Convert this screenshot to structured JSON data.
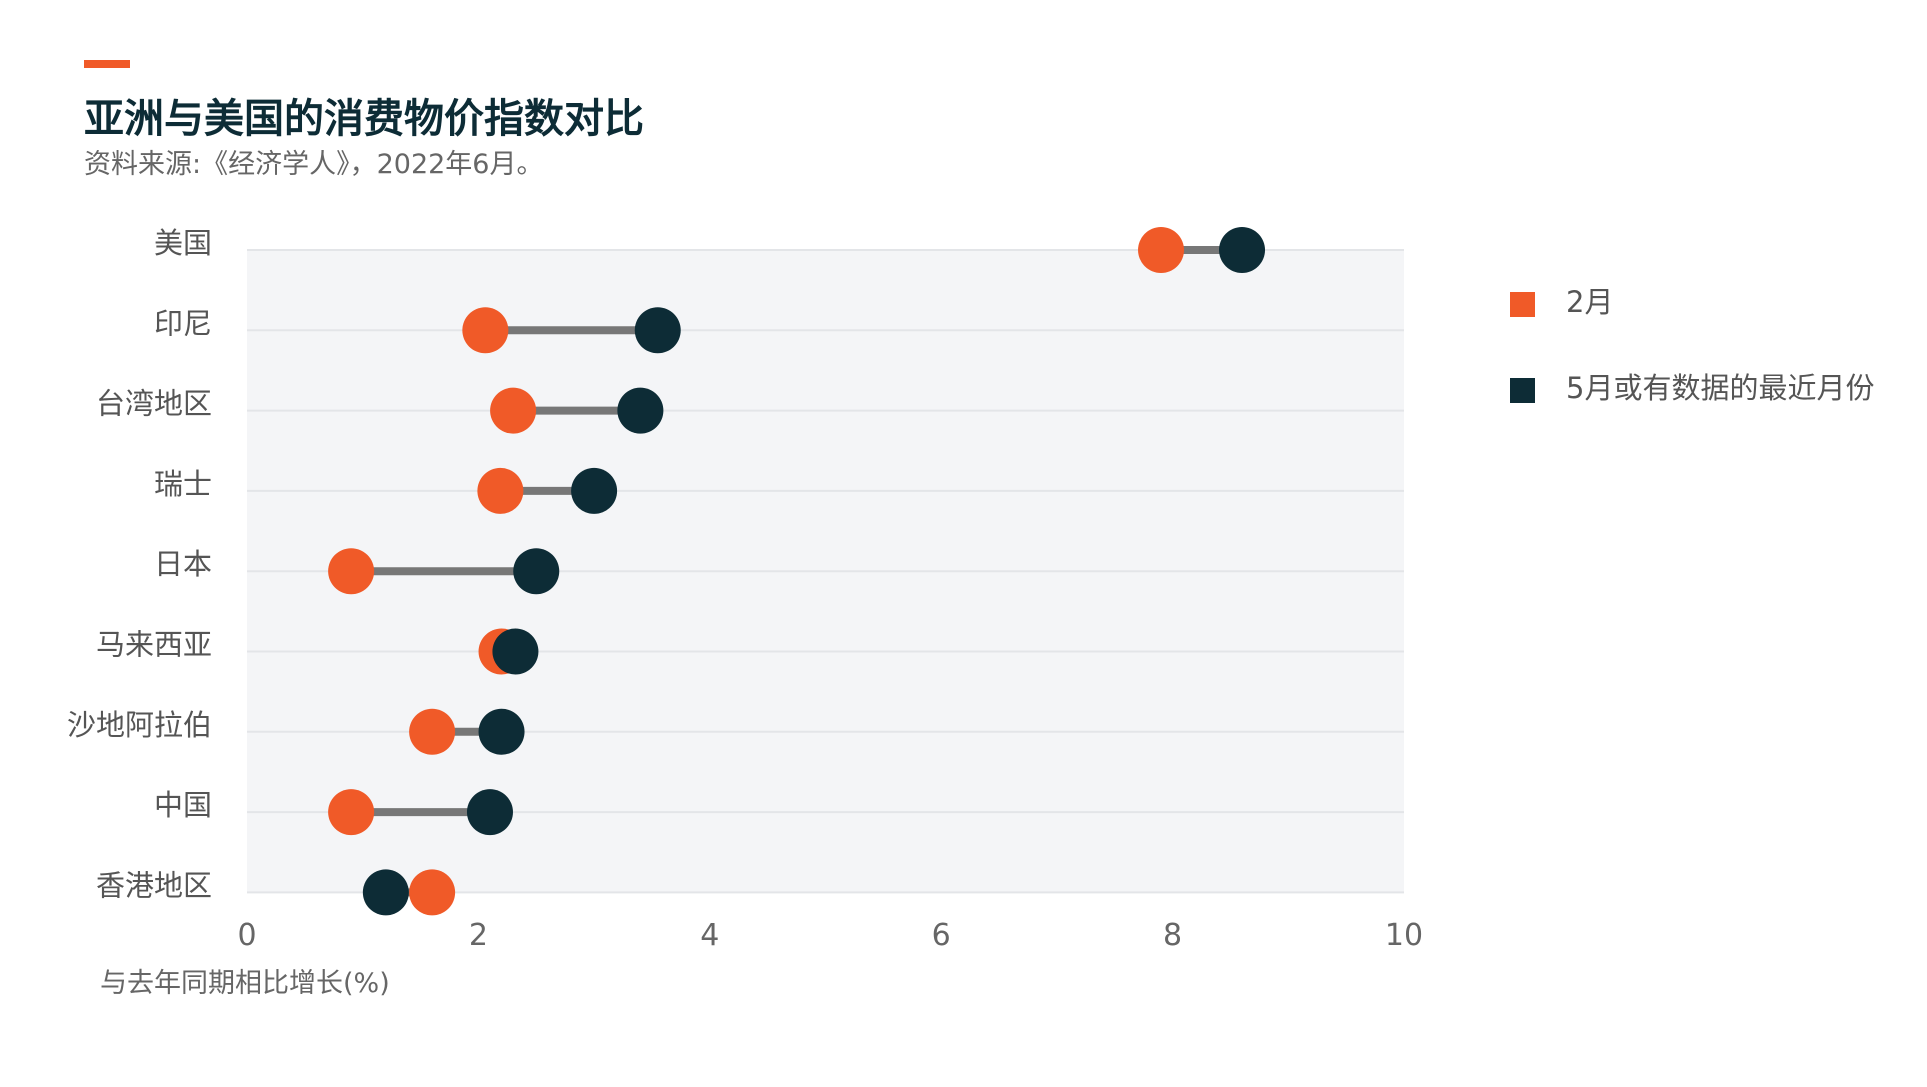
{
  "header": {
    "title": "亚洲与美国的消费物价指数对比",
    "subtitle": "资料来源:《经济学人》，2022年6月。"
  },
  "colors": {
    "feb": "#f05a28",
    "may": "#0d2c36",
    "connector": "#777777",
    "plot_bg": "#f4f5f7",
    "gridline": "#e3e5e8",
    "accent": "#f05a28"
  },
  "chart_data": {
    "type": "dumbbell",
    "categories": [
      "美国",
      "印尼",
      "台湾地区",
      "瑞士",
      "日本",
      "马来西亚",
      "沙地阿拉伯",
      "中国",
      "香港地区"
    ],
    "series": [
      {
        "name": "2月",
        "values": [
          7.9,
          2.06,
          2.3,
          2.19,
          0.9,
          2.2,
          1.6,
          0.9,
          1.6
        ]
      },
      {
        "name": "5月或有数据的最近月份",
        "values": [
          8.6,
          3.55,
          3.4,
          3.0,
          2.5,
          2.32,
          2.2,
          2.1,
          1.2
        ]
      }
    ],
    "xlabel": "与去年同期相比增长(%)",
    "xlim": [
      0,
      10
    ],
    "xticks": [
      "0",
      "2",
      "4",
      "6",
      "8",
      "10"
    ],
    "legend": "right",
    "grid": true
  }
}
